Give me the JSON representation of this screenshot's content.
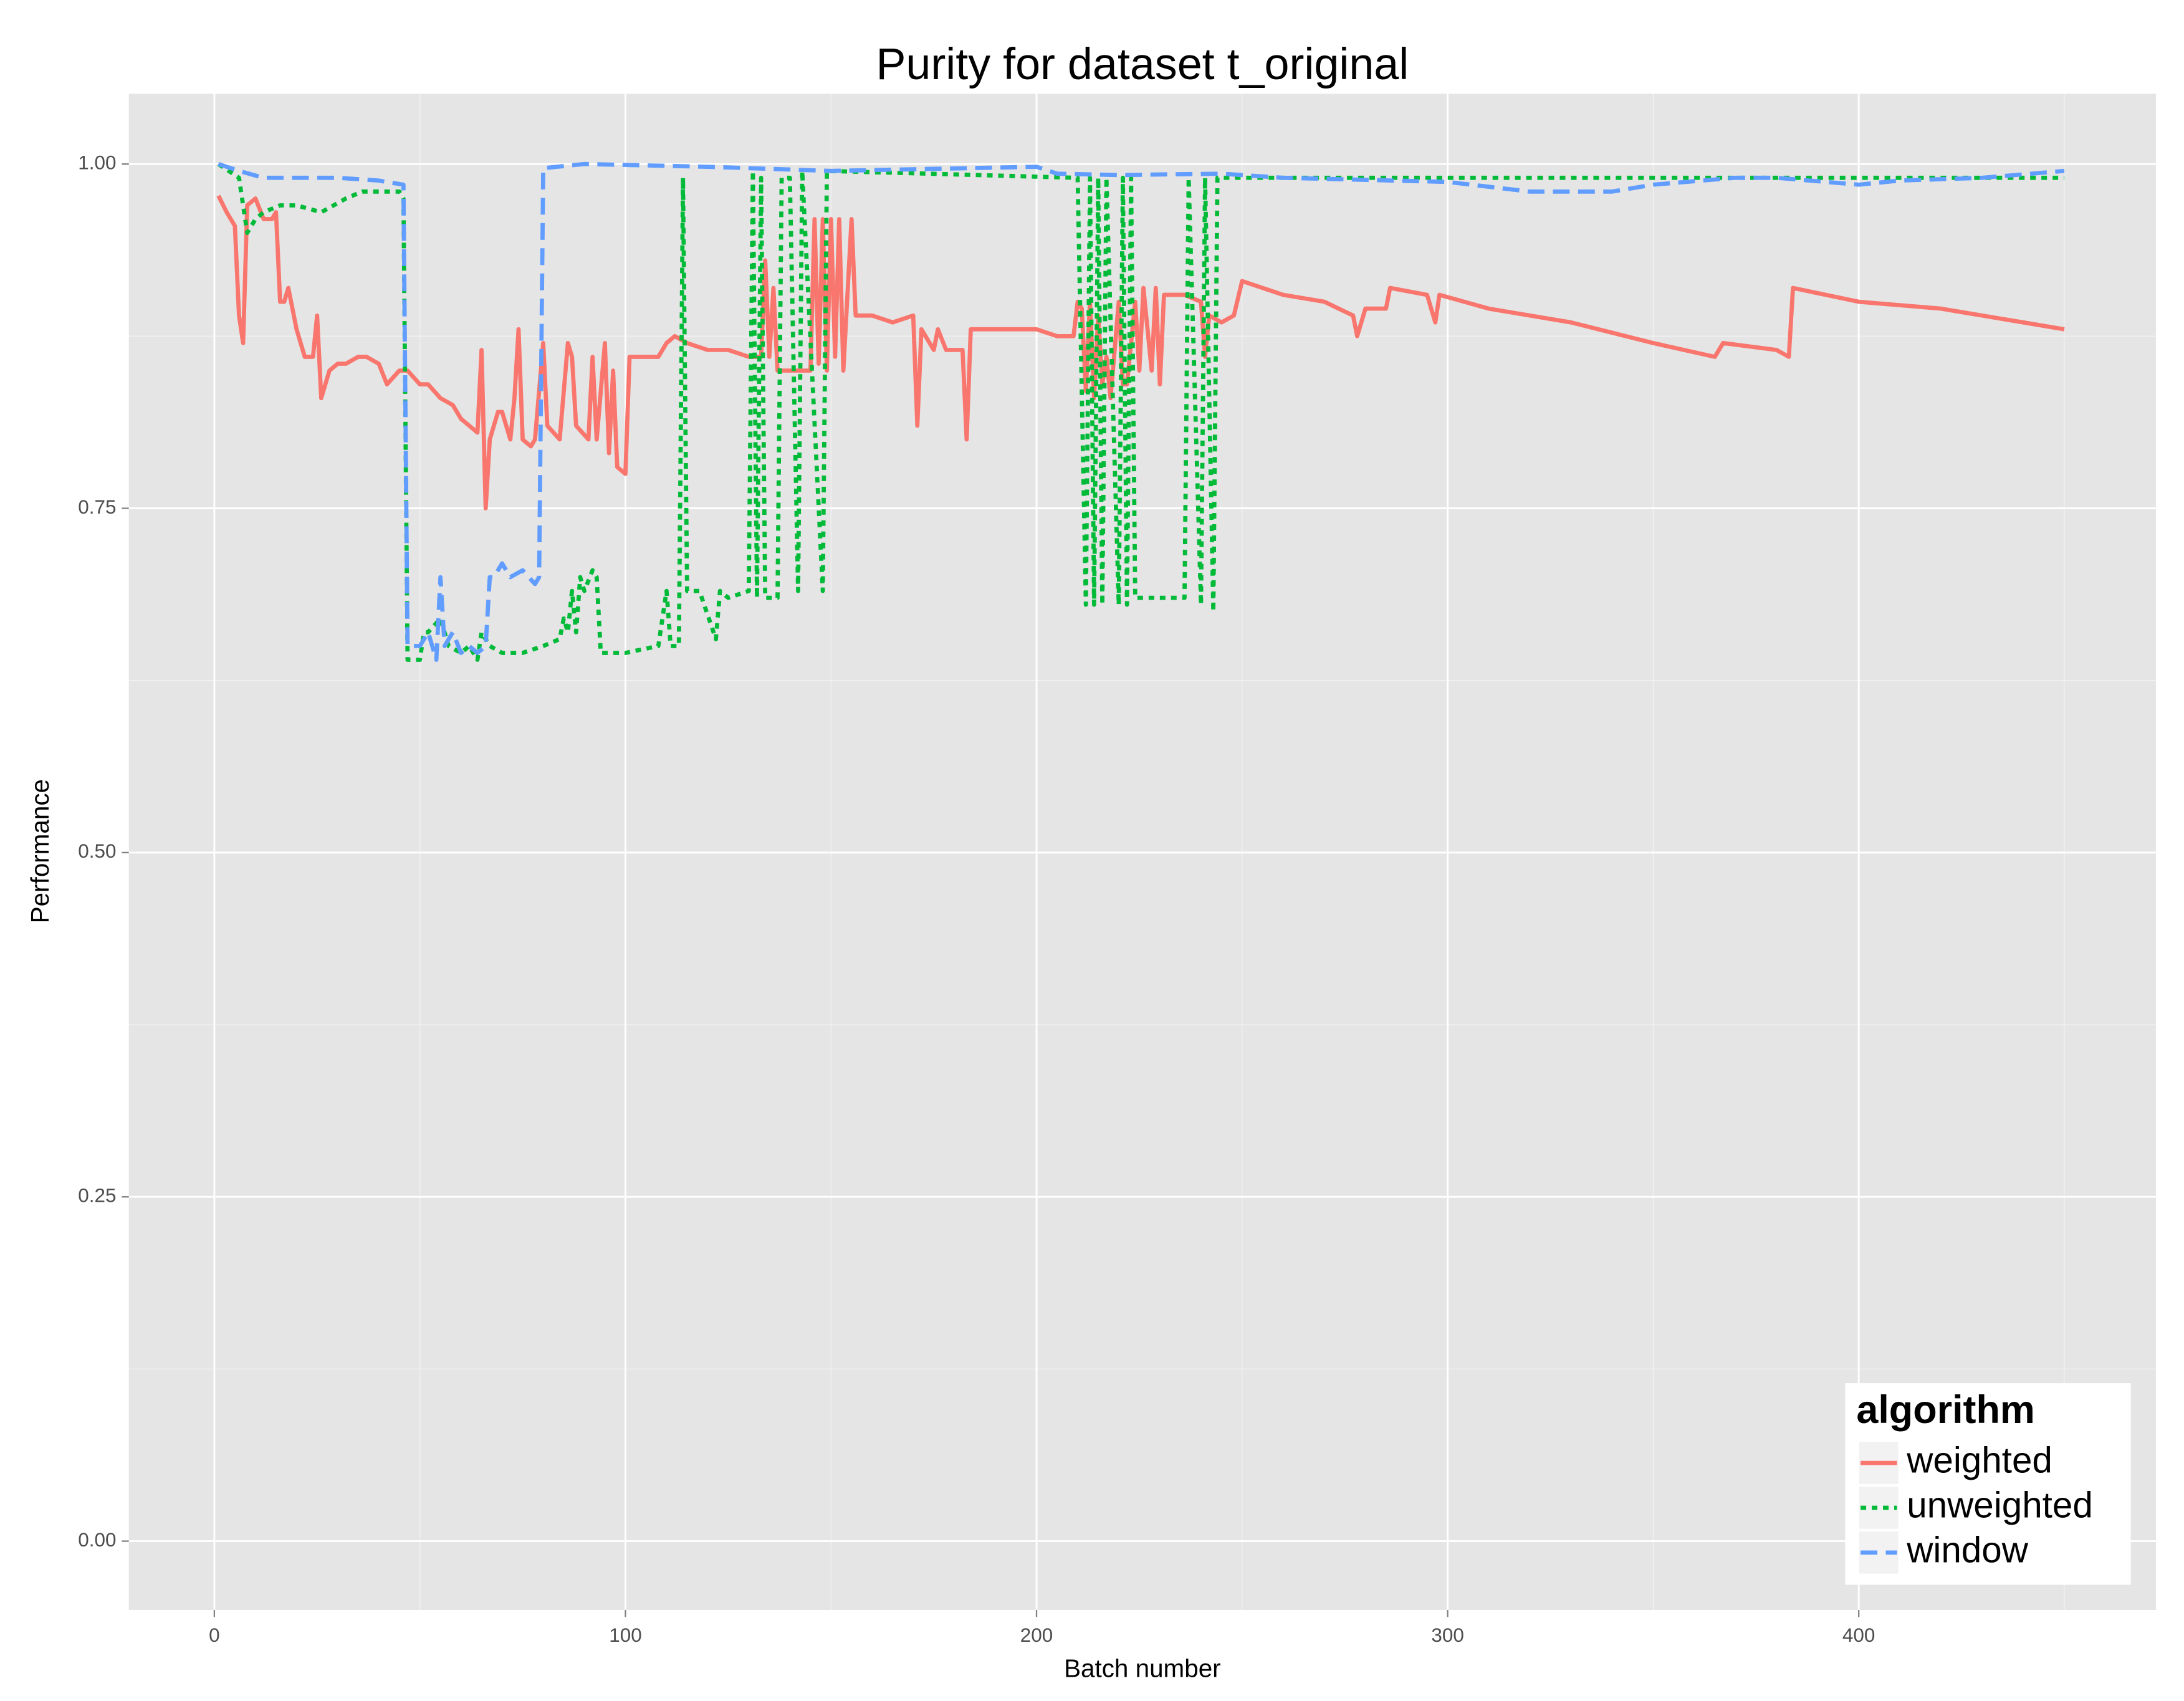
{
  "chart_data": {
    "type": "line",
    "title": "Purity for dataset t_original",
    "x_label": "Batch number",
    "y_label": "Performance",
    "xlim": [
      -20.8,
      472.3
    ],
    "ylim": [
      -0.05,
      1.051
    ],
    "xticks": [
      0,
      100,
      200,
      300,
      400
    ],
    "yticks": [
      {
        "value": 0,
        "label": "0.00"
      },
      {
        "value": 0.25,
        "label": "0.25"
      },
      {
        "value": 0.5,
        "label": "0.50"
      },
      {
        "value": 0.75,
        "label": "0.75"
      },
      {
        "value": 1,
        "label": "1.00"
      }
    ],
    "grid": true,
    "minor_grid": true,
    "legend_title": "algorithm",
    "legend_position": "bottom-right",
    "series": [
      {
        "name": "weighted",
        "color": "#f8766d",
        "linetype": "solid",
        "x": [
          1,
          3,
          5,
          6,
          7,
          8,
          10,
          12,
          14,
          15,
          16,
          17,
          18,
          20,
          22,
          24,
          25,
          26,
          28,
          30,
          32,
          35,
          37,
          40,
          42,
          45,
          47,
          50,
          52,
          55,
          58,
          60,
          62,
          64,
          65,
          66,
          67,
          69,
          70,
          72,
          73,
          74,
          75,
          77,
          78,
          80,
          81,
          84,
          86,
          87,
          88,
          91,
          92,
          93,
          95,
          96,
          97,
          98,
          100,
          101,
          104,
          108,
          110,
          112,
          115,
          120,
          125,
          130,
          133,
          134,
          135,
          136,
          137,
          140,
          143,
          145,
          146,
          147,
          148,
          149,
          150,
          151,
          152,
          153,
          155,
          156,
          160,
          165,
          170,
          171,
          172,
          175,
          176,
          178,
          182,
          183,
          184,
          190,
          200,
          205,
          209,
          210,
          211,
          212,
          213,
          214,
          215,
          216,
          217,
          218,
          220,
          221,
          222,
          224,
          225,
          226,
          228,
          229,
          230,
          231,
          236,
          240,
          241,
          242,
          245,
          248,
          250,
          260,
          270,
          277,
          278,
          280,
          285,
          286,
          295,
          297,
          298,
          310,
          330,
          350,
          365,
          367,
          380,
          383,
          384,
          400,
          420,
          440,
          450
        ],
        "values": [
          0.977,
          0.965,
          0.955,
          0.89,
          0.87,
          0.97,
          0.975,
          0.96,
          0.96,
          0.965,
          0.9,
          0.9,
          0.91,
          0.88,
          0.86,
          0.86,
          0.89,
          0.83,
          0.85,
          0.855,
          0.855,
          0.86,
          0.86,
          0.855,
          0.84,
          0.85,
          0.85,
          0.84,
          0.84,
          0.83,
          0.825,
          0.815,
          0.81,
          0.805,
          0.865,
          0.75,
          0.8,
          0.82,
          0.82,
          0.8,
          0.83,
          0.88,
          0.8,
          0.795,
          0.8,
          0.87,
          0.81,
          0.8,
          0.87,
          0.86,
          0.81,
          0.8,
          0.86,
          0.8,
          0.87,
          0.79,
          0.85,
          0.78,
          0.775,
          0.86,
          0.86,
          0.86,
          0.87,
          0.875,
          0.87,
          0.865,
          0.865,
          0.86,
          0.86,
          0.93,
          0.86,
          0.91,
          0.85,
          0.85,
          0.85,
          0.85,
          0.96,
          0.855,
          0.96,
          0.85,
          0.96,
          0.86,
          0.96,
          0.85,
          0.96,
          0.89,
          0.89,
          0.885,
          0.89,
          0.81,
          0.88,
          0.865,
          0.88,
          0.865,
          0.865,
          0.8,
          0.88,
          0.88,
          0.88,
          0.875,
          0.875,
          0.9,
          0.895,
          0.835,
          0.9,
          0.83,
          0.89,
          0.84,
          0.86,
          0.83,
          0.9,
          0.84,
          0.84,
          0.9,
          0.85,
          0.91,
          0.85,
          0.91,
          0.84,
          0.905,
          0.905,
          0.9,
          0.86,
          0.89,
          0.885,
          0.89,
          0.915,
          0.905,
          0.9,
          0.89,
          0.875,
          0.895,
          0.895,
          0.91,
          0.905,
          0.885,
          0.905,
          0.895,
          0.885,
          0.87,
          0.86,
          0.87,
          0.865,
          0.86,
          0.91,
          0.9,
          0.895,
          0.885,
          0.88
        ]
      },
      {
        "name": "unweighted",
        "color": "#00ba38",
        "linetype": "dotted",
        "x": [
          1,
          6,
          8,
          10,
          12,
          16,
          20,
          26,
          32,
          36,
          40,
          45,
          46,
          47,
          50,
          51,
          52,
          55,
          57,
          60,
          62,
          64,
          65,
          67,
          70,
          75,
          80,
          84,
          85,
          86,
          87,
          88,
          89,
          90,
          92,
          93,
          94,
          100,
          108,
          110,
          111,
          113,
          114,
          115,
          118,
          122,
          123,
          125,
          130,
          131,
          132,
          133,
          134,
          137,
          138,
          140,
          142,
          143,
          148,
          149,
          210,
          212,
          213,
          214,
          215,
          216,
          217,
          220,
          221,
          222,
          223,
          224,
          236,
          237,
          240,
          241,
          243,
          244,
          300,
          400,
          450
        ],
        "values": [
          1.0,
          0.99,
          0.95,
          0.96,
          0.965,
          0.97,
          0.97,
          0.965,
          0.975,
          0.98,
          0.98,
          0.98,
          0.975,
          0.64,
          0.64,
          0.66,
          0.66,
          0.67,
          0.65,
          0.645,
          0.65,
          0.64,
          0.66,
          0.65,
          0.645,
          0.645,
          0.65,
          0.655,
          0.67,
          0.66,
          0.69,
          0.66,
          0.7,
          0.69,
          0.705,
          0.7,
          0.645,
          0.645,
          0.65,
          0.69,
          0.65,
          0.65,
          0.99,
          0.69,
          0.69,
          0.655,
          0.69,
          0.685,
          0.69,
          0.995,
          0.685,
          0.99,
          0.685,
          0.685,
          0.99,
          0.99,
          0.69,
          0.995,
          0.69,
          0.995,
          0.99,
          0.68,
          0.99,
          0.68,
          0.99,
          0.68,
          0.99,
          0.68,
          0.99,
          0.68,
          0.99,
          0.685,
          0.685,
          0.99,
          0.68,
          0.99,
          0.675,
          0.99,
          0.99,
          0.99,
          0.99
        ]
      },
      {
        "name": "window",
        "color": "#619cff",
        "linetype": "dashed",
        "x": [
          1,
          6,
          12,
          20,
          30,
          40,
          46,
          47,
          50,
          52,
          54,
          55,
          56,
          58,
          60,
          62,
          64,
          66,
          67,
          68,
          70,
          72,
          75,
          78,
          79,
          80,
          90,
          120,
          150,
          200,
          205,
          220,
          245,
          260,
          300,
          320,
          340,
          350,
          370,
          380,
          400,
          410,
          430,
          450
        ],
        "values": [
          1.0,
          0.995,
          0.99,
          0.99,
          0.99,
          0.988,
          0.985,
          0.65,
          0.65,
          0.66,
          0.64,
          0.7,
          0.65,
          0.66,
          0.645,
          0.65,
          0.645,
          0.65,
          0.7,
          0.7,
          0.71,
          0.7,
          0.705,
          0.695,
          0.7,
          0.997,
          1.0,
          0.998,
          0.995,
          0.998,
          0.993,
          0.992,
          0.993,
          0.99,
          0.987,
          0.98,
          0.98,
          0.985,
          0.99,
          0.99,
          0.985,
          0.988,
          0.99,
          0.995
        ]
      }
    ]
  }
}
